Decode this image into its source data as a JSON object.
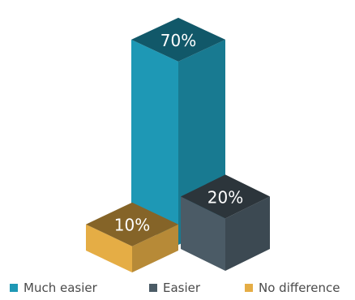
{
  "chart_data": {
    "type": "bar",
    "categories": [
      "Much easier",
      "Easier",
      "No difference"
    ],
    "values": [
      70,
      20,
      10
    ],
    "value_labels": [
      "70%",
      "20%",
      "10%"
    ],
    "colors": [
      "#1e98b5",
      "#4b5b66",
      "#e5ad45"
    ],
    "grid": false,
    "legend": "bottom",
    "title": "",
    "xlabel": "",
    "ylabel": ""
  }
}
